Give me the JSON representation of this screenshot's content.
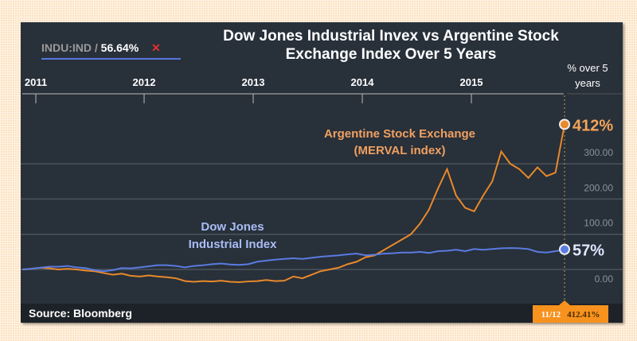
{
  "chart_data": {
    "type": "line",
    "title": "Dow Jones Industrial Invex vs Argentine Stock Exchange Index Over 5 Years",
    "x_ticks": [
      "2011",
      "2012",
      "2013",
      "2014",
      "2015"
    ],
    "y_ticks": [
      "300.00",
      "200.00",
      "100.00",
      "0.00"
    ],
    "ylim": [
      -50,
      430
    ],
    "right_header": "% over 5 years",
    "x_start": "Nov 2010",
    "x_end": "Nov 2015",
    "series": [
      {
        "name": "Argentine Stock Exchange (MERVAL index)",
        "line1": "Argentine Stock Exchange",
        "line2": "(MERVAL index)",
        "color": "#e8892a",
        "end_label": "412%",
        "values": [
          0,
          2,
          5,
          3,
          0,
          2,
          0,
          -3,
          -5,
          -10,
          -15,
          -12,
          -18,
          -20,
          -17,
          -20,
          -22,
          -25,
          -33,
          -35,
          -33,
          -34,
          -32,
          -35,
          -36,
          -34,
          -33,
          -30,
          -33,
          -32,
          -20,
          -25,
          -15,
          -5,
          0,
          5,
          15,
          22,
          35,
          40,
          55,
          70,
          85,
          100,
          130,
          170,
          230,
          285,
          210,
          175,
          165,
          210,
          250,
          335,
          300,
          285,
          260,
          290,
          265,
          275,
          412
        ]
      },
      {
        "name": "Dow Jones Industrial Index",
        "line1": "Dow Jones",
        "line2": "Industrial Index",
        "color": "#5a7be0",
        "end_label": "57%",
        "values": [
          0,
          2,
          5,
          8,
          8,
          10,
          6,
          4,
          -2,
          -5,
          -2,
          4,
          3,
          6,
          9,
          12,
          12,
          10,
          6,
          10,
          12,
          15,
          17,
          14,
          13,
          15,
          22,
          25,
          28,
          30,
          32,
          30,
          33,
          36,
          38,
          40,
          43,
          45,
          40,
          42,
          45,
          46,
          48,
          48,
          50,
          47,
          52,
          53,
          56,
          52,
          58,
          56,
          58,
          60,
          61,
          60,
          58,
          50,
          48,
          52,
          57
        ]
      }
    ]
  },
  "legend": {
    "ticker": "INDU:IND /",
    "value": "56.64%",
    "close": "✕"
  },
  "source": "Source: Bloomberg",
  "tooltip": {
    "date": "11/12",
    "value": "412.41%"
  }
}
